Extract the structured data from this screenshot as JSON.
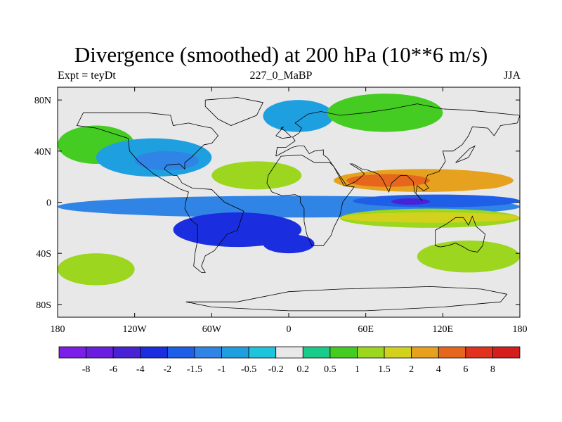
{
  "chart_data": {
    "type": "heatmap",
    "title": "Divergence (smoothed) at 200 hPa (10**6 m/s)",
    "subtitle_left": "Expt = teyDt",
    "subtitle_center": "227_0_MaBP",
    "subtitle_right": "JJA",
    "xlim": [
      -180,
      180
    ],
    "ylim": [
      -90,
      90
    ],
    "x_ticks": [
      {
        "value": -180,
        "label": "180"
      },
      {
        "value": -120,
        "label": "120W"
      },
      {
        "value": -60,
        "label": "60W"
      },
      {
        "value": 0,
        "label": "0"
      },
      {
        "value": 60,
        "label": "60E"
      },
      {
        "value": 120,
        "label": "120E"
      },
      {
        "value": 180,
        "label": "180"
      }
    ],
    "y_ticks": [
      {
        "value": 80,
        "label": "80N"
      },
      {
        "value": 40,
        "label": "40N"
      },
      {
        "value": 0,
        "label": "0"
      },
      {
        "value": -40,
        "label": "40S"
      },
      {
        "value": -80,
        "label": "80S"
      }
    ],
    "levels": [
      "-8",
      "-6",
      "-4",
      "-2",
      "-1.5",
      "-1",
      "-0.5",
      "-0.2",
      "0.2",
      "0.5",
      "1",
      "1.5",
      "2",
      "4",
      "6",
      "8"
    ],
    "colors": [
      "#7a1ee8",
      "#6a1ee0",
      "#4a22d6",
      "#1a2ee0",
      "#1f5ee6",
      "#2f84e6",
      "#1ea0e0",
      "#1ec4dc",
      "#e8e8e8",
      "#19cc8a",
      "#44cc22",
      "#9cd61e",
      "#d2d21e",
      "#e6a21e",
      "#e6661e",
      "#e0321e",
      "#d41e1e"
    ],
    "background_index": 8,
    "field_regions": [
      {
        "lon": [
          -180,
          180
        ],
        "lat": [
          -12,
          5
        ],
        "value": -1.2
      },
      {
        "lon": [
          -90,
          10
        ],
        "lat": [
          -35,
          -8
        ],
        "value": -2.5
      },
      {
        "lon": [
          -20,
          20
        ],
        "lat": [
          -40,
          -25
        ],
        "value": -2.2
      },
      {
        "lon": [
          50,
          180
        ],
        "lat": [
          -4,
          6
        ],
        "value": -1.6
      },
      {
        "lon": [
          80,
          110
        ],
        "lat": [
          -2,
          3
        ],
        "value": -4.5
      },
      {
        "lon": [
          40,
          180
        ],
        "lat": [
          -20,
          -5
        ],
        "value": 1.2
      },
      {
        "lon": [
          40,
          180
        ],
        "lat": [
          -16,
          -8
        ],
        "value": 1.8
      },
      {
        "lon": [
          35,
          175
        ],
        "lat": [
          8,
          26
        ],
        "value": 2.5
      },
      {
        "lon": [
          45,
          110
        ],
        "lat": [
          12,
          22
        ],
        "value": 4.5
      },
      {
        "lon": [
          120,
          170
        ],
        "lat": [
          10,
          20
        ],
        "value": 3.0
      },
      {
        "lon": [
          -180,
          -120
        ],
        "lat": [
          -65,
          -40
        ],
        "value": 1.2
      },
      {
        "lon": [
          100,
          180
        ],
        "lat": [
          -55,
          -30
        ],
        "value": 1.3
      },
      {
        "lon": [
          -60,
          10
        ],
        "lat": [
          10,
          32
        ],
        "value": 1.0
      },
      {
        "lon": [
          -180,
          -120
        ],
        "lat": [
          30,
          60
        ],
        "value": 0.6
      },
      {
        "lon": [
          -150,
          -60
        ],
        "lat": [
          20,
          50
        ],
        "value": -0.8
      },
      {
        "lon": [
          -120,
          -70
        ],
        "lat": [
          25,
          40
        ],
        "value": -1.5
      },
      {
        "lon": [
          -20,
          35
        ],
        "lat": [
          55,
          80
        ],
        "value": -0.8
      },
      {
        "lon": [
          30,
          120
        ],
        "lat": [
          55,
          85
        ],
        "value": 0.6
      }
    ],
    "coastline_outlines": [
      [
        [
          -65,
          80
        ],
        [
          -40,
          82
        ],
        [
          -20,
          78
        ],
        [
          -25,
          68
        ],
        [
          -45,
          60
        ],
        [
          -55,
          65
        ],
        [
          -65,
          75
        ],
        [
          -65,
          80
        ]
      ],
      [
        [
          -130,
          70
        ],
        [
          -160,
          70
        ],
        [
          -165,
          60
        ],
        [
          -150,
          58
        ],
        [
          -125,
          50
        ],
        [
          -124,
          40
        ],
        [
          -117,
          32
        ],
        [
          -105,
          22
        ],
        [
          -95,
          16
        ],
        [
          -84,
          10
        ],
        [
          -78,
          8
        ],
        [
          -80,
          1
        ],
        [
          -81,
          -5
        ],
        [
          -76,
          -14
        ],
        [
          -71,
          -18
        ],
        [
          -71,
          -30
        ],
        [
          -73,
          -40
        ],
        [
          -74,
          -50
        ],
        [
          -68,
          -55
        ],
        [
          -65,
          -55
        ],
        [
          -68,
          -50
        ],
        [
          -65,
          -42
        ],
        [
          -58,
          -38
        ],
        [
          -48,
          -25
        ],
        [
          -40,
          -22
        ],
        [
          -35,
          -7
        ],
        [
          -50,
          0
        ],
        [
          -60,
          10
        ],
        [
          -75,
          11
        ],
        [
          -83,
          15
        ],
        [
          -87,
          21
        ],
        [
          -90,
          21
        ],
        [
          -97,
          26
        ],
        [
          -95,
          29
        ],
        [
          -85,
          30
        ],
        [
          -81,
          26
        ],
        [
          -81,
          31
        ],
        [
          -76,
          35
        ],
        [
          -70,
          41
        ],
        [
          -66,
          45
        ],
        [
          -60,
          46
        ],
        [
          -55,
          52
        ],
        [
          -60,
          58
        ],
        [
          -70,
          60
        ],
        [
          -78,
          62
        ],
        [
          -90,
          60
        ],
        [
          -92,
          68
        ],
        [
          -110,
          70
        ],
        [
          -130,
          70
        ]
      ],
      [
        [
          -17,
          15
        ],
        [
          -16,
          21
        ],
        [
          -10,
          30
        ],
        [
          -6,
          36
        ],
        [
          10,
          37
        ],
        [
          20,
          31
        ],
        [
          32,
          31
        ],
        [
          35,
          28
        ],
        [
          43,
          13
        ],
        [
          51,
          12
        ],
        [
          42,
          0
        ],
        [
          40,
          -10
        ],
        [
          35,
          -20
        ],
        [
          33,
          -26
        ],
        [
          27,
          -34
        ],
        [
          18,
          -34
        ],
        [
          14,
          -25
        ],
        [
          12,
          -15
        ],
        [
          12,
          -5
        ],
        [
          9,
          0
        ],
        [
          9,
          4
        ],
        [
          5,
          6
        ],
        [
          -5,
          5
        ],
        [
          -13,
          8
        ],
        [
          -17,
          15
        ]
      ],
      [
        [
          -10,
          36
        ],
        [
          -9,
          43
        ],
        [
          -2,
          43
        ],
        [
          5,
          48
        ],
        [
          3,
          51
        ],
        [
          8,
          54
        ],
        [
          10,
          58
        ],
        [
          5,
          62
        ],
        [
          15,
          69
        ],
        [
          25,
          71
        ],
        [
          40,
          68
        ],
        [
          60,
          70
        ],
        [
          80,
          73
        ],
        [
          100,
          77
        ],
        [
          120,
          73
        ],
        [
          140,
          72
        ],
        [
          160,
          70
        ],
        [
          180,
          68
        ],
        [
          178,
          62
        ],
        [
          165,
          60
        ],
        [
          160,
          52
        ],
        [
          155,
          58
        ],
        [
          143,
          59
        ],
        [
          140,
          52
        ],
        [
          135,
          45
        ],
        [
          128,
          40
        ],
        [
          120,
          40
        ],
        [
          122,
          32
        ],
        [
          117,
          24
        ],
        [
          108,
          21
        ],
        [
          106,
          15
        ],
        [
          109,
          11
        ],
        [
          105,
          9
        ],
        [
          100,
          13
        ],
        [
          99,
          7
        ],
        [
          104,
          1
        ],
        [
          98,
          8
        ],
        [
          97,
          16
        ],
        [
          92,
          21
        ],
        [
          87,
          21
        ],
        [
          80,
          15
        ],
        [
          78,
          8
        ],
        [
          73,
          18
        ],
        [
          70,
          22
        ],
        [
          62,
          25
        ],
        [
          57,
          26
        ],
        [
          50,
          30
        ],
        [
          48,
          30
        ],
        [
          56,
          25
        ],
        [
          59,
          22
        ],
        [
          52,
          16
        ],
        [
          45,
          13
        ],
        [
          43,
          16
        ],
        [
          39,
          22
        ],
        [
          35,
          28
        ],
        [
          30,
          35
        ],
        [
          27,
          37
        ],
        [
          27,
          41
        ],
        [
          20,
          40
        ],
        [
          16,
          38
        ],
        [
          12,
          44
        ],
        [
          7,
          44
        ],
        [
          3,
          43
        ],
        [
          -10,
          36
        ]
      ],
      [
        [
          114,
          -22
        ],
        [
          114,
          -34
        ],
        [
          118,
          -35
        ],
        [
          124,
          -34
        ],
        [
          130,
          -32
        ],
        [
          136,
          -35
        ],
        [
          141,
          -38
        ],
        [
          147,
          -39
        ],
        [
          151,
          -34
        ],
        [
          153,
          -25
        ],
        [
          146,
          -19
        ],
        [
          143,
          -11
        ],
        [
          140,
          -18
        ],
        [
          136,
          -12
        ],
        [
          130,
          -12
        ],
        [
          123,
          -17
        ],
        [
          114,
          -22
        ]
      ],
      [
        [
          -10,
          52
        ],
        [
          -5,
          50
        ],
        [
          2,
          51
        ],
        [
          -3,
          56
        ],
        [
          -6,
          58
        ],
        [
          -4,
          59
        ],
        [
          -10,
          52
        ]
      ],
      [
        [
          130,
          31
        ],
        [
          133,
          34
        ],
        [
          141,
          42
        ],
        [
          145,
          44
        ],
        [
          140,
          35
        ],
        [
          135,
          33
        ],
        [
          130,
          31
        ]
      ],
      [
        [
          -80,
          -78
        ],
        [
          -40,
          -78
        ],
        [
          0,
          -70
        ],
        [
          40,
          -68
        ],
        [
          80,
          -67
        ],
        [
          110,
          -66
        ],
        [
          150,
          -68
        ],
        [
          170,
          -72
        ],
        [
          165,
          -78
        ],
        [
          120,
          -82
        ],
        [
          60,
          -85
        ],
        [
          0,
          -85
        ],
        [
          -60,
          -82
        ],
        [
          -80,
          -78
        ]
      ]
    ]
  }
}
